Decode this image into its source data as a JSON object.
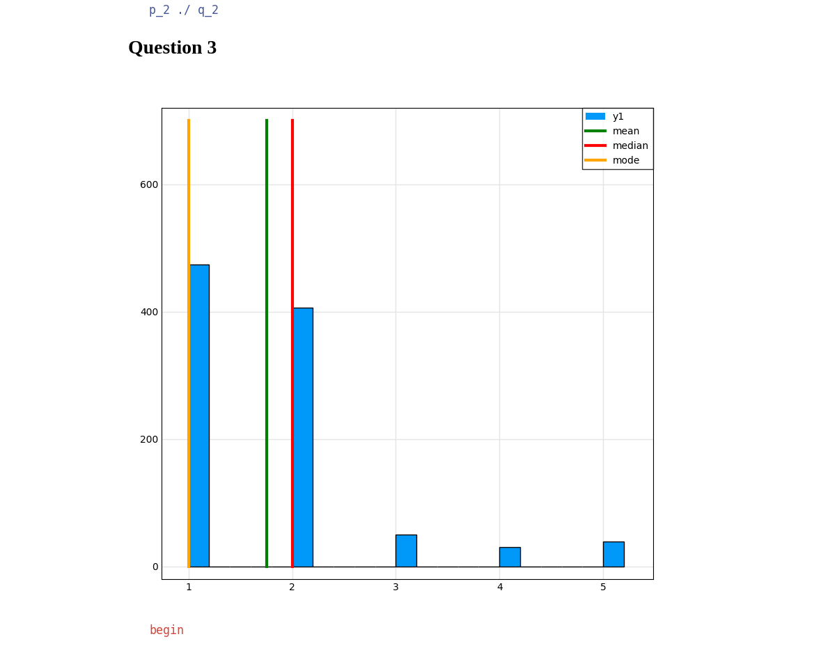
{
  "chart_data": {
    "type": "histogram",
    "title": "Question 3",
    "annotations": [
      "p_2 ./ q_2",
      "begin"
    ],
    "series": [
      {
        "name": "y1",
        "type": "histogram",
        "color": "#0099f9",
        "bins": [
          1.0,
          1.2,
          1.4,
          1.6,
          1.8,
          2.0,
          2.2,
          2.4,
          2.6,
          2.8,
          3.0,
          3.2,
          3.4,
          3.6,
          3.8,
          4.0,
          4.2,
          4.4,
          4.6,
          4.8,
          5.0,
          5.2
        ],
        "values": [
          474,
          0,
          0,
          0,
          0,
          406,
          0,
          0,
          0,
          0,
          50,
          0,
          0,
          0,
          0,
          30,
          0,
          0,
          0,
          0,
          39
        ]
      },
      {
        "name": "mean",
        "type": "line",
        "color": "green",
        "x": [
          1.756,
          1.756
        ],
        "values": [
          0,
          700
        ]
      },
      {
        "name": "median",
        "type": "line",
        "color": "red",
        "x": [
          2,
          2
        ],
        "values": [
          0,
          700
        ]
      },
      {
        "name": "mode",
        "type": "line",
        "color": "orange",
        "x": [
          1,
          1
        ],
        "values": [
          0,
          700
        ]
      }
    ],
    "xlim": [
      0.74,
      5.48
    ],
    "xticks": [
      1,
      2,
      3,
      4,
      5
    ],
    "ylim": [
      -20,
      720
    ],
    "yticks": [
      0,
      200,
      400,
      600
    ],
    "grid": true,
    "legend": "upper right"
  }
}
